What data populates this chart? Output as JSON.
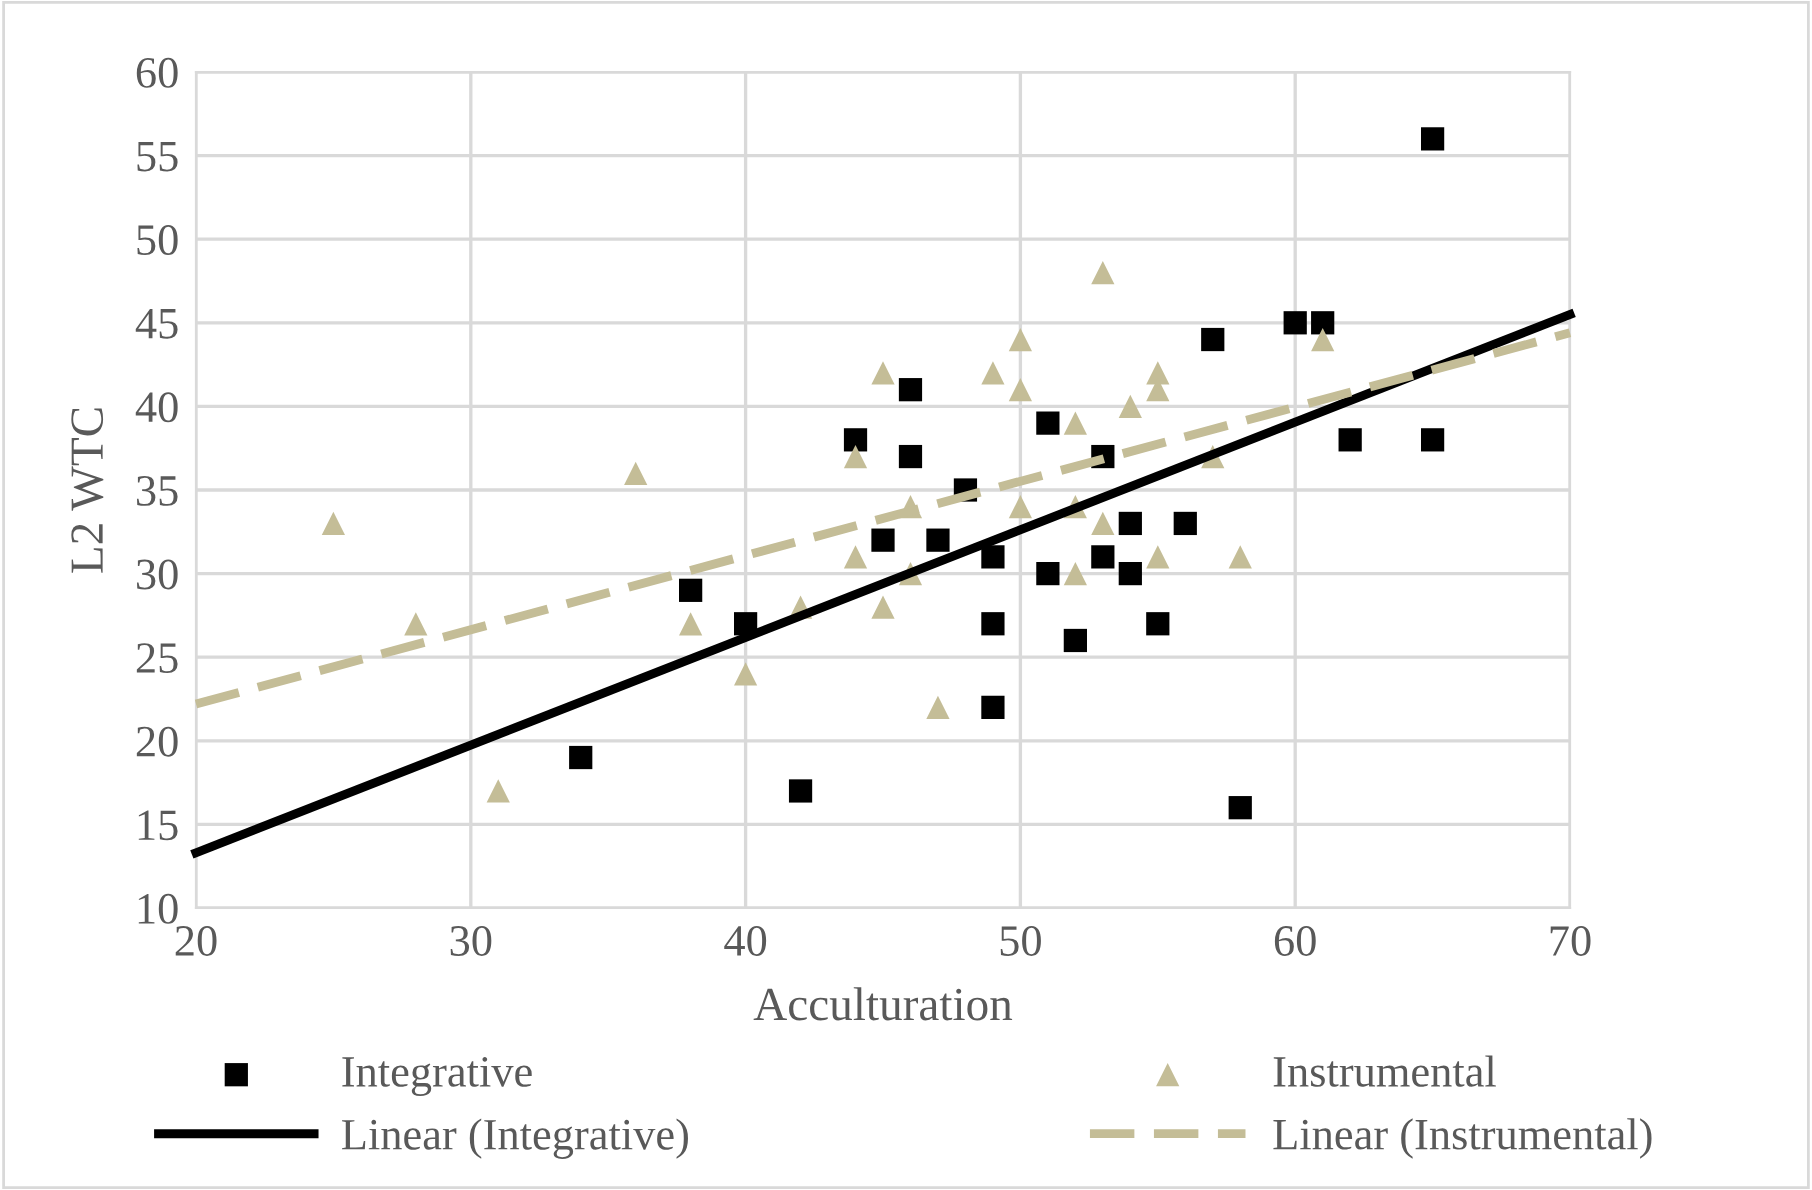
{
  "chart_data": {
    "type": "scatter",
    "xlabel": "Acculturation",
    "ylabel": "L2 WTC",
    "xlim": [
      20,
      70
    ],
    "ylim": [
      10,
      60
    ],
    "xticks": [
      20,
      30,
      40,
      50,
      60,
      70
    ],
    "yticks": [
      10,
      15,
      20,
      25,
      30,
      35,
      40,
      45,
      50,
      55,
      60
    ],
    "grid": true,
    "legend": "bottom",
    "series": [
      {
        "name": "Integrative",
        "marker": "square",
        "color": "#000000",
        "x": [
          34,
          38,
          40,
          42,
          44,
          45,
          46,
          46,
          47,
          48,
          49,
          49,
          49,
          51,
          51,
          52,
          53,
          53,
          54,
          54,
          55,
          56,
          57,
          58,
          60,
          61,
          62,
          65,
          65
        ],
        "values": [
          19,
          29,
          27,
          17,
          38,
          32,
          41,
          37,
          32,
          35,
          31,
          27,
          22,
          39,
          30,
          26,
          37,
          31,
          33,
          30,
          27,
          33,
          44,
          16,
          45,
          45,
          38,
          56,
          38
        ]
      },
      {
        "name": "Instrumental",
        "marker": "triangle",
        "color": "#c4bd97",
        "x": [
          25,
          28,
          31,
          36,
          38,
          40,
          42,
          44,
          44,
          45,
          45,
          46,
          46,
          47,
          49,
          50,
          50,
          50,
          52,
          52,
          52,
          53,
          53,
          54,
          55,
          55,
          55,
          57,
          58,
          61
        ],
        "values": [
          33,
          27,
          17,
          36,
          27,
          24,
          28,
          37,
          31,
          42,
          28,
          34,
          30,
          22,
          42,
          44,
          41,
          34,
          39,
          34,
          30,
          48,
          33,
          40,
          42,
          41,
          31,
          37,
          31,
          44
        ]
      },
      {
        "name": "Linear (Integrative)",
        "type": "line",
        "line_style": "solid",
        "color": "#000000",
        "x": [
          20,
          70
        ],
        "values": [
          13.3,
          45.5
        ]
      },
      {
        "name": "Linear (Instrumental)",
        "type": "line",
        "line_style": "dashed",
        "color": "#c4bd97",
        "x": [
          20,
          70
        ],
        "values": [
          22.2,
          44.4
        ]
      }
    ]
  }
}
